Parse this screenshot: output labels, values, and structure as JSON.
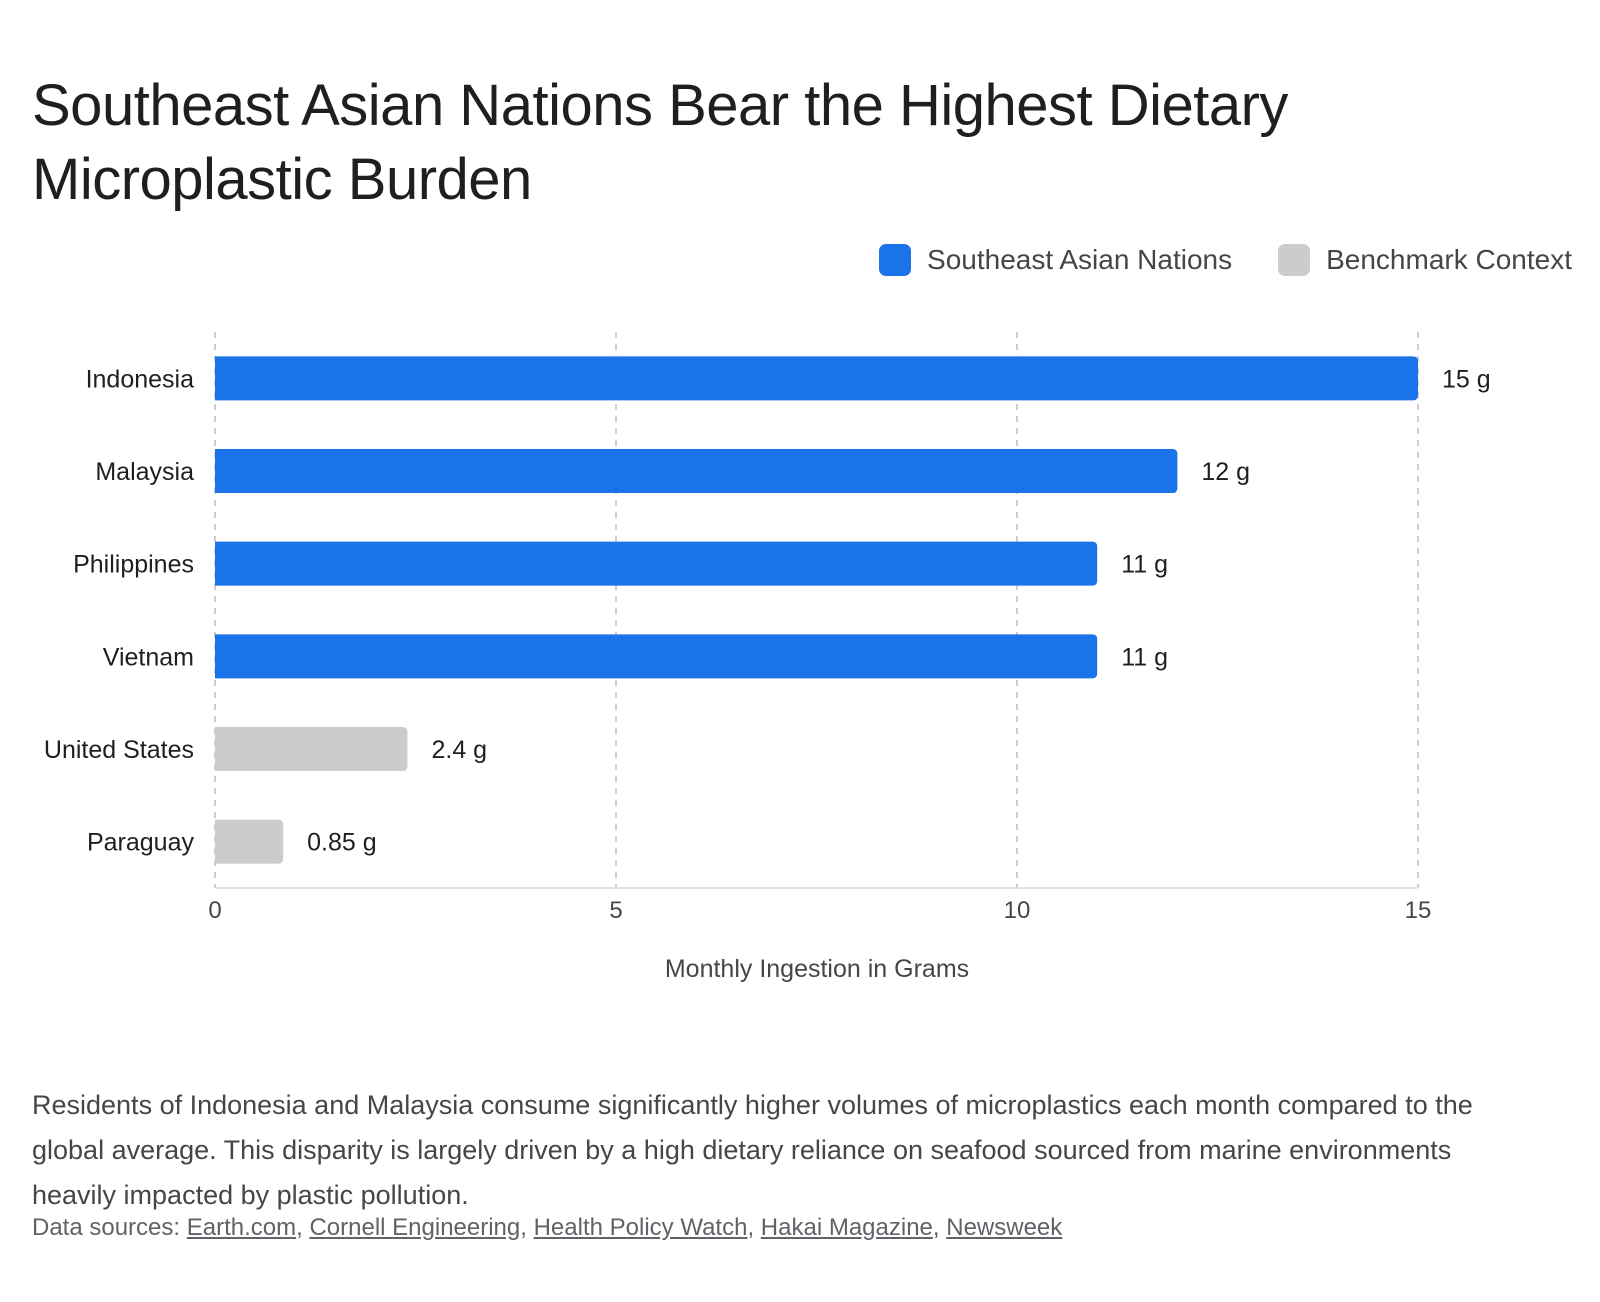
{
  "title": "Southeast Asian Nations Bear the Highest Dietary Microplastic Burden",
  "legend": [
    {
      "label": "Southeast Asian Nations",
      "color": "#1a73e8"
    },
    {
      "label": "Benchmark Context",
      "color": "#cccccc"
    }
  ],
  "chart_data": {
    "type": "bar",
    "orientation": "horizontal",
    "categories": [
      "Indonesia",
      "Malaysia",
      "Philippines",
      "Vietnam",
      "United States",
      "Paraguay"
    ],
    "values": [
      15,
      12,
      11,
      11,
      2.4,
      0.85
    ],
    "value_labels": [
      "15 g",
      "12 g",
      "11 g",
      "11 g",
      "2.4 g",
      "0.85 g"
    ],
    "groups": [
      "Southeast Asian Nations",
      "Southeast Asian Nations",
      "Southeast Asian Nations",
      "Southeast Asian Nations",
      "Benchmark Context",
      "Benchmark Context"
    ],
    "xlabel": "Monthly Ingestion in Grams",
    "xlim": [
      0,
      15
    ],
    "xticks": [
      0,
      5,
      10,
      15
    ],
    "grid": "vertical dashed",
    "legend_position": "top-right"
  },
  "description": "Residents of Indonesia and Malaysia consume significantly higher volumes of microplastics each month compared to the global average. This disparity is largely driven by a high dietary reliance on seafood sourced from marine environments heavily impacted by plastic pollution.",
  "sources": {
    "prefix": "Data sources: ",
    "links": [
      "Earth.com",
      "Cornell Engineering",
      "Health Policy Watch",
      "Hakai Magazine",
      "Newsweek"
    ]
  }
}
